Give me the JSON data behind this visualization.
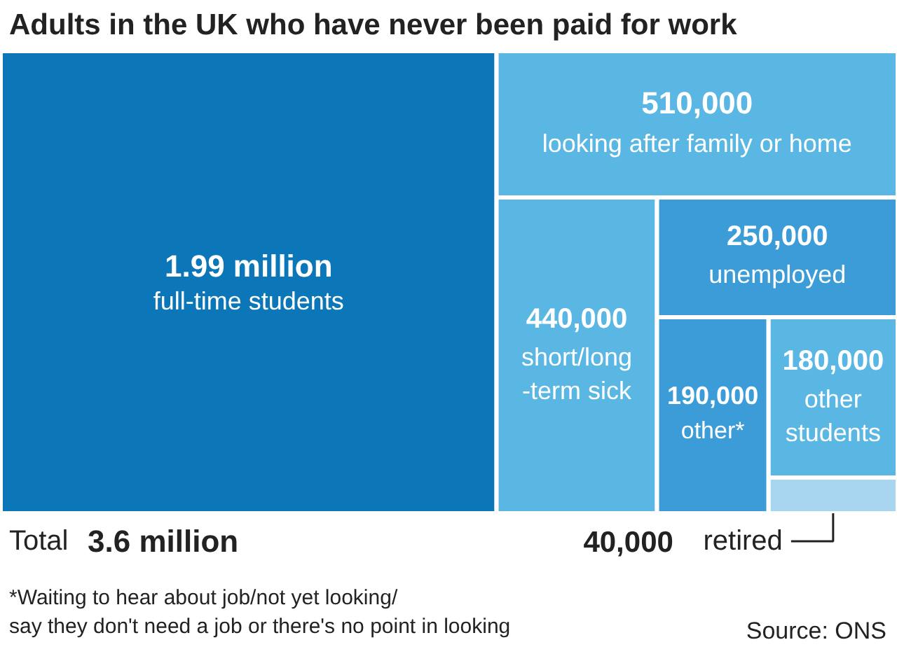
{
  "chart_data": {
    "type": "other",
    "title": "Adults in the UK who have never been paid for work",
    "categories": [
      "full-time students",
      "looking after family or home",
      "short/long\n-term sick",
      "unemployed",
      "other*",
      "other\nstudents",
      "retired"
    ],
    "values": [
      1990000,
      510000,
      440000,
      250000,
      190000,
      180000,
      40000
    ],
    "value_labels": [
      "1.99 million",
      "510,000",
      "440,000",
      "250,000",
      "190,000",
      "180,000",
      "40,000"
    ],
    "colors": [
      "#0b76b8",
      "#5ab7e3",
      "#5ab7e3",
      "#3b9cd8",
      "#3b9cd8",
      "#5ab7e3",
      "#a8d5ef"
    ],
    "annotations": [
      "Total 3.6 million",
      "*Waiting to hear about job/not yet looking/\nsay they don't need a job or there's no point in looking",
      "Source: ONS"
    ]
  }
}
